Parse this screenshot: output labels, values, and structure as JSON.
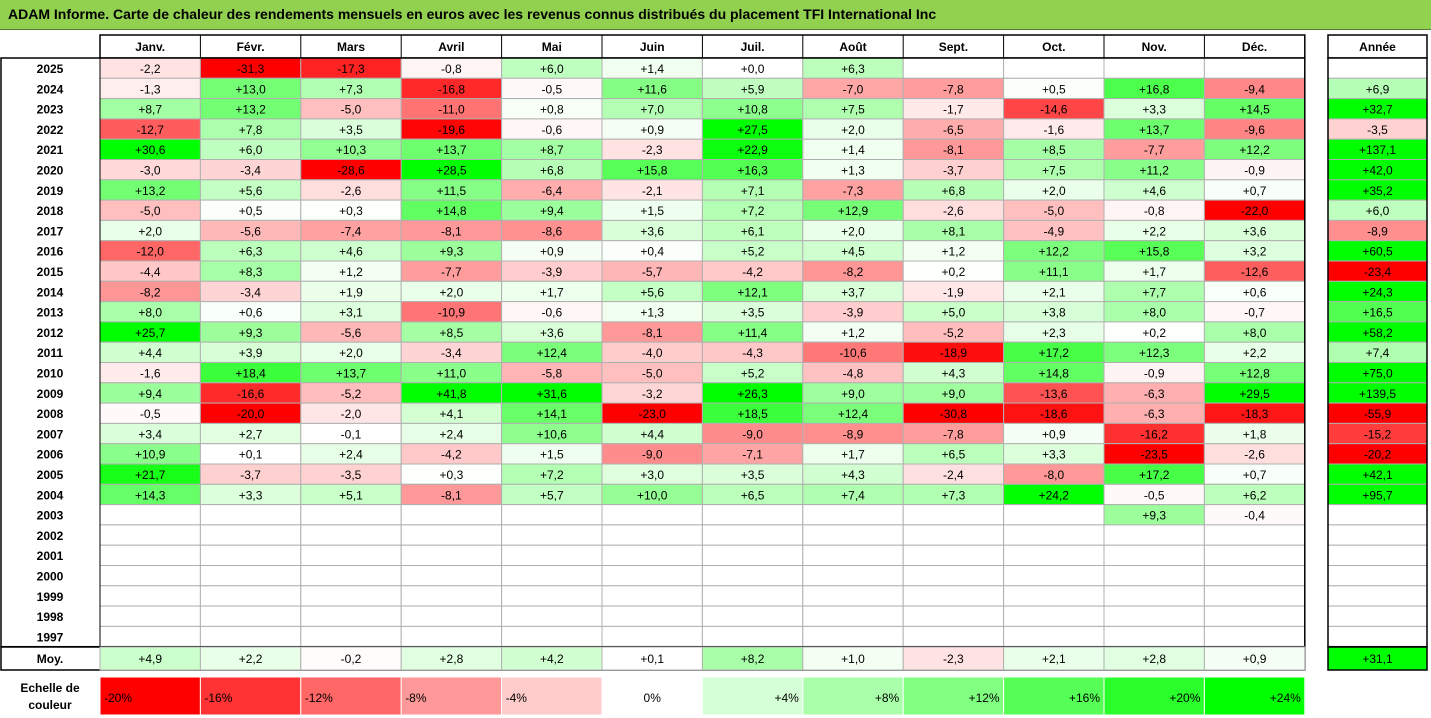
{
  "title": "ADAM Informe. Carte de chaleur des rendements mensuels en euros avec les revenus connus distribués du placement TFI International Inc",
  "chart_data": {
    "type": "heatmap",
    "months": [
      "Janv.",
      "Févr.",
      "Mars",
      "Avril",
      "Mai",
      "Juin",
      "Juil.",
      "Août",
      "Sept.",
      "Oct.",
      "Nov.",
      "Déc."
    ],
    "year_header": "Année",
    "avg_label": "Moy.",
    "rows": [
      {
        "year": "2025",
        "months": [
          "-2,2",
          "-31,3",
          "-17,3",
          "-0,8",
          "+6,0",
          "+1,4",
          "+0,0",
          "+6,3",
          "",
          "",
          "",
          ""
        ],
        "annual": ""
      },
      {
        "year": "2024",
        "months": [
          "-1,3",
          "+13,0",
          "+7,3",
          "-16,8",
          "-0,5",
          "+11,6",
          "+5,9",
          "-7,0",
          "-7,8",
          "+0,5",
          "+16,8",
          "-9,4"
        ],
        "annual": "+6,9"
      },
      {
        "year": "2023",
        "months": [
          "+8,7",
          "+13,2",
          "-5,0",
          "-11,0",
          "+0,8",
          "+7,0",
          "+10,8",
          "+7,5",
          "-1,7",
          "-14,6",
          "+3,3",
          "+14,5"
        ],
        "annual": "+32,7"
      },
      {
        "year": "2022",
        "months": [
          "-12,7",
          "+7,8",
          "+3,5",
          "-19,6",
          "-0,6",
          "+0,9",
          "+27,5",
          "+2,0",
          "-6,5",
          "-1,6",
          "+13,7",
          "-9,6"
        ],
        "annual": "-3,5"
      },
      {
        "year": "2021",
        "months": [
          "+30,6",
          "+6,0",
          "+10,3",
          "+13,7",
          "+8,7",
          "-2,3",
          "+22,9",
          "+1,4",
          "-8,1",
          "+8,5",
          "-7,7",
          "+12,2"
        ],
        "annual": "+137,1"
      },
      {
        "year": "2020",
        "months": [
          "-3,0",
          "-3,4",
          "-28,6",
          "+28,5",
          "+6,8",
          "+15,8",
          "+16,3",
          "+1,3",
          "-3,7",
          "+7,5",
          "+11,2",
          "-0,9"
        ],
        "annual": "+42,0"
      },
      {
        "year": "2019",
        "months": [
          "+13,2",
          "+5,6",
          "-2,6",
          "+11,5",
          "-6,4",
          "-2,1",
          "+7,1",
          "-7,3",
          "+6,8",
          "+2,0",
          "+4,6",
          "+0,7"
        ],
        "annual": "+35,2"
      },
      {
        "year": "2018",
        "months": [
          "-5,0",
          "+0,5",
          "+0,3",
          "+14,8",
          "+9,4",
          "+1,5",
          "+7,2",
          "+12,9",
          "-2,6",
          "-5,0",
          "-0,8",
          "-22,0"
        ],
        "annual": "+6,0"
      },
      {
        "year": "2017",
        "months": [
          "+2,0",
          "-5,6",
          "-7,4",
          "-8,1",
          "-8,6",
          "+3,6",
          "+6,1",
          "+2,0",
          "+8,1",
          "-4,9",
          "+2,2",
          "+3,6"
        ],
        "annual": "-8,9"
      },
      {
        "year": "2016",
        "months": [
          "-12,0",
          "+6,3",
          "+4,6",
          "+9,3",
          "+0,9",
          "+0,4",
          "+5,2",
          "+4,5",
          "+1,2",
          "+12,2",
          "+15,8",
          "+3,2"
        ],
        "annual": "+60,5"
      },
      {
        "year": "2015",
        "months": [
          "-4,4",
          "+8,3",
          "+1,2",
          "-7,7",
          "-3,9",
          "-5,7",
          "-4,2",
          "-8,2",
          "+0,2",
          "+11,1",
          "+1,7",
          "-12,6"
        ],
        "annual": "-23,4"
      },
      {
        "year": "2014",
        "months": [
          "-8,2",
          "-3,4",
          "+1,9",
          "+2,0",
          "+1,7",
          "+5,6",
          "+12,1",
          "+3,7",
          "-1,9",
          "+2,1",
          "+7,7",
          "+0,6"
        ],
        "annual": "+24,3"
      },
      {
        "year": "2013",
        "months": [
          "+8,0",
          "+0,6",
          "+3,1",
          "-10,9",
          "-0,6",
          "+1,3",
          "+3,5",
          "-3,9",
          "+5,0",
          "+3,8",
          "+8,0",
          "-0,7"
        ],
        "annual": "+16,5"
      },
      {
        "year": "2012",
        "months": [
          "+25,7",
          "+9,3",
          "-5,6",
          "+8,5",
          "+3,6",
          "-8,1",
          "+11,4",
          "+1,2",
          "-5,2",
          "+2,3",
          "+0,2",
          "+8,0"
        ],
        "annual": "+58,2"
      },
      {
        "year": "2011",
        "months": [
          "+4,4",
          "+3,9",
          "+2,0",
          "-3,4",
          "+12,4",
          "-4,0",
          "-4,3",
          "-10,6",
          "-18,9",
          "+17,2",
          "+12,3",
          "+2,2"
        ],
        "annual": "+7,4"
      },
      {
        "year": "2010",
        "months": [
          "-1,6",
          "+18,4",
          "+13,7",
          "+11,0",
          "-5,8",
          "-5,0",
          "+5,2",
          "-4,8",
          "+4,3",
          "+14,8",
          "-0,9",
          "+12,8"
        ],
        "annual": "+75,0"
      },
      {
        "year": "2009",
        "months": [
          "+9,4",
          "-16,6",
          "-5,2",
          "+41,8",
          "+31,6",
          "-3,2",
          "+26,3",
          "+9,0",
          "+9,0",
          "-13,6",
          "-6,3",
          "+29,5"
        ],
        "annual": "+139,5"
      },
      {
        "year": "2008",
        "months": [
          "-0,5",
          "-20,0",
          "-2,0",
          "+4,1",
          "+14,1",
          "-23,0",
          "+18,5",
          "+12,4",
          "-30,8",
          "-18,6",
          "-6,3",
          "-18,3"
        ],
        "annual": "-55,9"
      },
      {
        "year": "2007",
        "months": [
          "+3,4",
          "+2,7",
          "-0,1",
          "+2,4",
          "+10,6",
          "+4,4",
          "-9,0",
          "-8,9",
          "-7,8",
          "+0,9",
          "-16,2",
          "+1,8"
        ],
        "annual": "-15,2"
      },
      {
        "year": "2006",
        "months": [
          "+10,9",
          "+0,1",
          "+2,4",
          "-4,2",
          "+1,5",
          "-9,0",
          "-7,1",
          "+1,7",
          "+6,5",
          "+3,3",
          "-23,5",
          "-2,6"
        ],
        "annual": "-20,2"
      },
      {
        "year": "2005",
        "months": [
          "+21,7",
          "-3,7",
          "-3,5",
          "+0,3",
          "+7,2",
          "+3,0",
          "+3,5",
          "+4,3",
          "-2,4",
          "-8,0",
          "+17,2",
          "+0,7"
        ],
        "annual": "+42,1"
      },
      {
        "year": "2004",
        "months": [
          "+14,3",
          "+3,3",
          "+5,1",
          "-8,1",
          "+5,7",
          "+10,0",
          "+6,5",
          "+7,4",
          "+7,3",
          "+24,2",
          "-0,5",
          "+6,2"
        ],
        "annual": "+95,7"
      },
      {
        "year": "2003",
        "months": [
          "",
          "",
          "",
          "",
          "",
          "",
          "",
          "",
          "",
          "",
          "+9,3",
          "-0,4"
        ],
        "annual": ""
      },
      {
        "year": "2002",
        "months": [
          "",
          "",
          "",
          "",
          "",
          "",
          "",
          "",
          "",
          "",
          "",
          ""
        ],
        "annual": ""
      },
      {
        "year": "2001",
        "months": [
          "",
          "",
          "",
          "",
          "",
          "",
          "",
          "",
          "",
          "",
          "",
          ""
        ],
        "annual": ""
      },
      {
        "year": "2000",
        "months": [
          "",
          "",
          "",
          "",
          "",
          "",
          "",
          "",
          "",
          "",
          "",
          ""
        ],
        "annual": ""
      },
      {
        "year": "1999",
        "months": [
          "",
          "",
          "",
          "",
          "",
          "",
          "",
          "",
          "",
          "",
          "",
          ""
        ],
        "annual": ""
      },
      {
        "year": "1998",
        "months": [
          "",
          "",
          "",
          "",
          "",
          "",
          "",
          "",
          "",
          "",
          "",
          ""
        ],
        "annual": ""
      },
      {
        "year": "1997",
        "months": [
          "",
          "",
          "",
          "",
          "",
          "",
          "",
          "",
          "",
          "",
          "",
          ""
        ],
        "annual": ""
      }
    ],
    "average": {
      "months": [
        "+4,9",
        "+2,2",
        "-0,2",
        "+2,8",
        "+4,2",
        "+0,1",
        "+8,2",
        "+1,0",
        "-2,3",
        "+2,1",
        "+2,8",
        "+0,9"
      ],
      "annual": "+31,1"
    },
    "scale_label": [
      "Echelle de",
      "couleur"
    ],
    "scale": [
      {
        "label": "-20%",
        "value": -20
      },
      {
        "label": "-16%",
        "value": -16
      },
      {
        "label": "-12%",
        "value": -12
      },
      {
        "label": "-8%",
        "value": -8
      },
      {
        "label": "-4%",
        "value": -4
      },
      {
        "label": "0%",
        "value": 0
      },
      {
        "label": "+4%",
        "value": 4
      },
      {
        "label": "+8%",
        "value": 8
      },
      {
        "label": "+12%",
        "value": 12
      },
      {
        "label": "+16%",
        "value": 16
      },
      {
        "label": "+20%",
        "value": 20
      },
      {
        "label": "+24%",
        "value": 24
      }
    ],
    "colors": {
      "negative": "#ff0000",
      "neutral": "#ffffff",
      "positive": "#00ff00",
      "title_bg": "#92d050"
    }
  }
}
